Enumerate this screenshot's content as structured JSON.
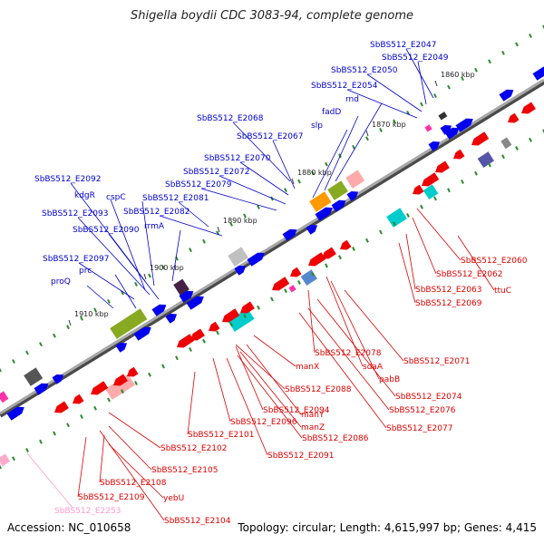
{
  "title": "Shigella boydii CDC 3083-94, complete genome",
  "footer": {
    "accession": "Accession: NC_010658",
    "summary": "Topology: circular; Length: 4,615,997 bp; Genes: 4,415"
  },
  "colors": {
    "forward_label": "#0000cc",
    "reverse_label": "#dd0000",
    "pseudo_label": "#ff99cc",
    "backbone": "#888888",
    "tick": "#2e8b2e"
  },
  "kbp_ticks": [
    "1860 kbp",
    "1870 kbp",
    "1880 kbp",
    "1890 kbp",
    "1900 kbp",
    "1910 kbp"
  ],
  "forward_labels": [
    "SbBS512_E2047",
    "SbBS512_E2049",
    "SbBS512_E2050",
    "SbBS512_E2054",
    "rnd",
    "fadD",
    "slp",
    "SbBS512_E2068",
    "SbBS512_E2067",
    "SbBS512_E2070",
    "SbBS512_E2072",
    "SbBS512_E2079",
    "SbBS512_E2092",
    "kdgR",
    "cspC",
    "SbBS512_E2081",
    "SbBS512_E2093",
    "SbBS512_E2082",
    "SbBS512_E2090",
    "rrmA",
    "SbBS512_E2097",
    "prc",
    "proQ"
  ],
  "reverse_labels": [
    "SbBS512_E2060",
    "SbBS512_E2062",
    "ttuC",
    "SbBS512_E2063",
    "SbBS512_E2069",
    "SbBS512_E2071",
    "SbBS512_E2078",
    "sdaA",
    "pabB",
    "manX",
    "SbBS512_E2074",
    "SbBS512_E2076",
    "SbBS512_E2088",
    "SbBS512_E2077",
    "manY",
    "SbBS512_E2094",
    "manZ",
    "SbBS512_E2096",
    "SbBS512_E2086",
    "SbBS512_E2101",
    "SbBS512_E2091",
    "SbBS512_E2102",
    "SbBS512_E2105",
    "SbBS512_E2108",
    "yebU",
    "SbBS512_E2109",
    "SbBS512_E2104"
  ],
  "pseudo_labels": [
    "SbBS512_E2253"
  ]
}
